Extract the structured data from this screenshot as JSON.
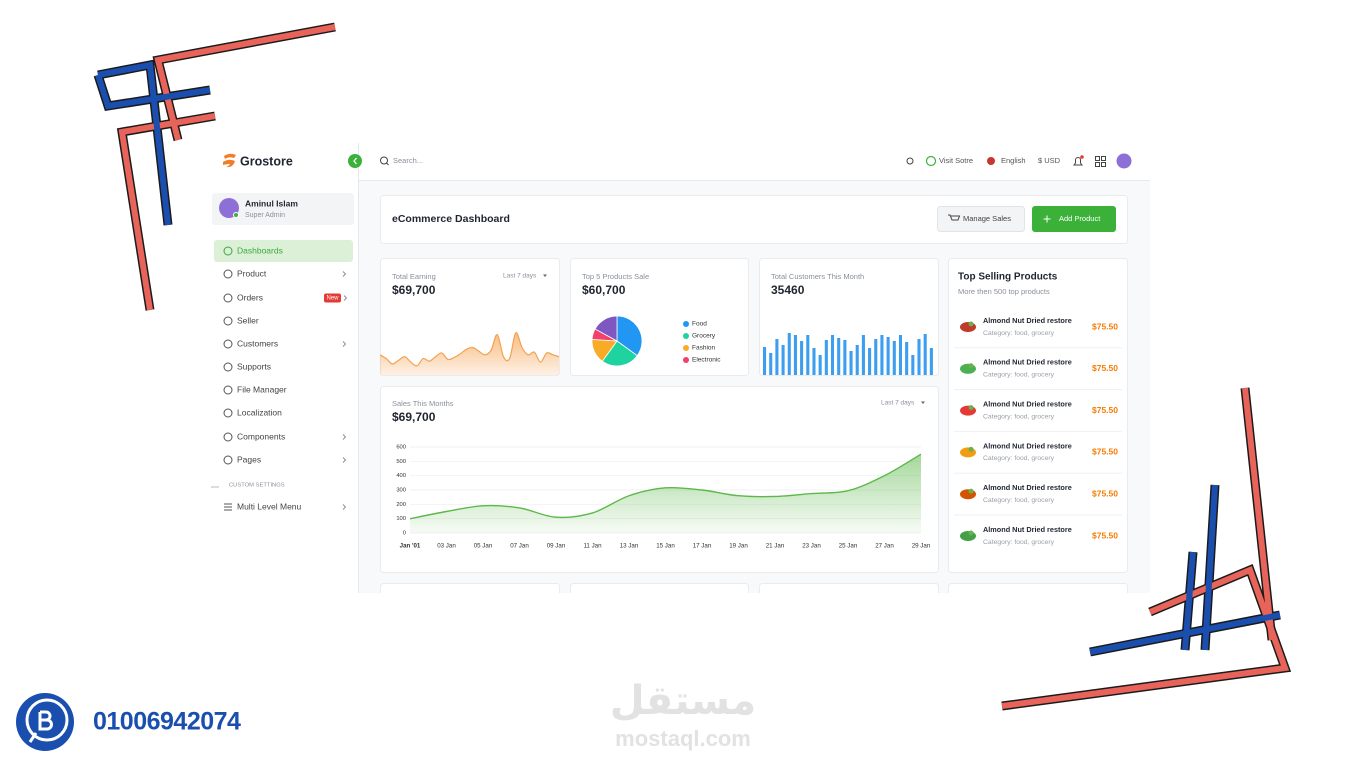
{
  "brand": "Grostore",
  "user": {
    "name": "Aminul Islam",
    "role": "Super Admin"
  },
  "nav": [
    {
      "label": "Dashboards",
      "active": true
    },
    {
      "label": "Product",
      "chevron": true
    },
    {
      "label": "Orders",
      "badge": "New"
    },
    {
      "label": "Seller"
    },
    {
      "label": "Customers",
      "chevron": true
    },
    {
      "label": "Supports"
    },
    {
      "label": "File Manager"
    },
    {
      "label": "Localization"
    },
    {
      "label": "Components",
      "chevron": true
    },
    {
      "label": "Pages",
      "chevron": true
    }
  ],
  "nav_section": "CUSTOM SETTINGS",
  "nav_extra": {
    "label": "Multi Level Menu",
    "chevron": true
  },
  "topbar": {
    "search": "Search...",
    "visit": "Visit Sotre",
    "language": "English",
    "currency": "$ USD"
  },
  "header": {
    "title": "eCommerce Dashboard",
    "manage": "Manage Sales",
    "add": "Add Product"
  },
  "chart_data": [
    {
      "type": "area",
      "title": "Total Earning",
      "subtitle": "$69,700",
      "period": "Last 7 days",
      "color": "#f5a04e",
      "values": [
        22,
        18,
        12,
        16,
        20,
        14,
        10,
        18,
        15,
        20,
        24,
        17,
        19,
        23,
        28,
        30,
        26,
        22,
        27,
        44,
        20,
        18,
        46,
        30,
        22,
        25,
        14,
        24,
        22,
        20
      ],
      "ylim": [
        0,
        60
      ]
    },
    {
      "type": "pie",
      "title": "Top 5 Products Sale",
      "subtitle": "$60,700",
      "categories": [
        "Food",
        "Grocery",
        "Fashion",
        "Electronic",
        null
      ],
      "values": [
        35,
        25,
        16,
        7,
        17
      ],
      "colors": [
        "#2196f3",
        "#1fd3a0",
        "#f9ab25",
        "#f2416b",
        "#7e57c2"
      ]
    },
    {
      "type": "bar",
      "title": "Total Customers This Month",
      "subtitle": "35460",
      "color": "#3d9ef0",
      "values": [
        28,
        22,
        36,
        30,
        42,
        40,
        34,
        40,
        27,
        20,
        35,
        40,
        37,
        35,
        24,
        30,
        40,
        27,
        36,
        40,
        38,
        34,
        40,
        33,
        20,
        36,
        41,
        27
      ],
      "ylim": [
        0,
        50
      ]
    },
    {
      "type": "line",
      "title": "Sales This Months",
      "subtitle": "$69,700",
      "period": "Last 7 days",
      "color": "#5cb84a",
      "categories": [
        "Jan '01",
        "03 Jan",
        "05 Jan",
        "07 Jan",
        "09 Jan",
        "11 Jan",
        "13 Jan",
        "15 Jan",
        "17 Jan",
        "19 Jan",
        "21 Jan",
        "23 Jan",
        "25 Jan",
        "27 Jan",
        "29 Jan"
      ],
      "values": [
        100,
        150,
        190,
        175,
        110,
        140,
        260,
        315,
        300,
        260,
        255,
        275,
        295,
        400,
        550
      ],
      "ylim": [
        0,
        600
      ],
      "yticks": [
        0,
        100,
        200,
        300,
        400,
        500,
        600
      ],
      "grid": true
    }
  ],
  "top_products": {
    "title": "Top Selling Products",
    "subtitle": "More then 500 top products",
    "items": [
      {
        "name": "Almond Nut Dried restore",
        "category": "Category: food, grocery",
        "price": "$75.50"
      },
      {
        "name": "Almond Nut Dried restore",
        "category": "Category: food, grocery",
        "price": "$75.50"
      },
      {
        "name": "Almond Nut Dried restore",
        "category": "Category: food, grocery",
        "price": "$75.50"
      },
      {
        "name": "Almond Nut Dried restore",
        "category": "Category: food, grocery",
        "price": "$75.50"
      },
      {
        "name": "Almond Nut Dried restore",
        "category": "Category: food, grocery",
        "price": "$75.50"
      },
      {
        "name": "Almond Nut Dried restore",
        "category": "Category: food, grocery",
        "price": "$75.50"
      }
    ]
  },
  "footer": {
    "phone": "01006942074",
    "watermark_ar": "مستقل",
    "watermark": "mostaql.com"
  }
}
